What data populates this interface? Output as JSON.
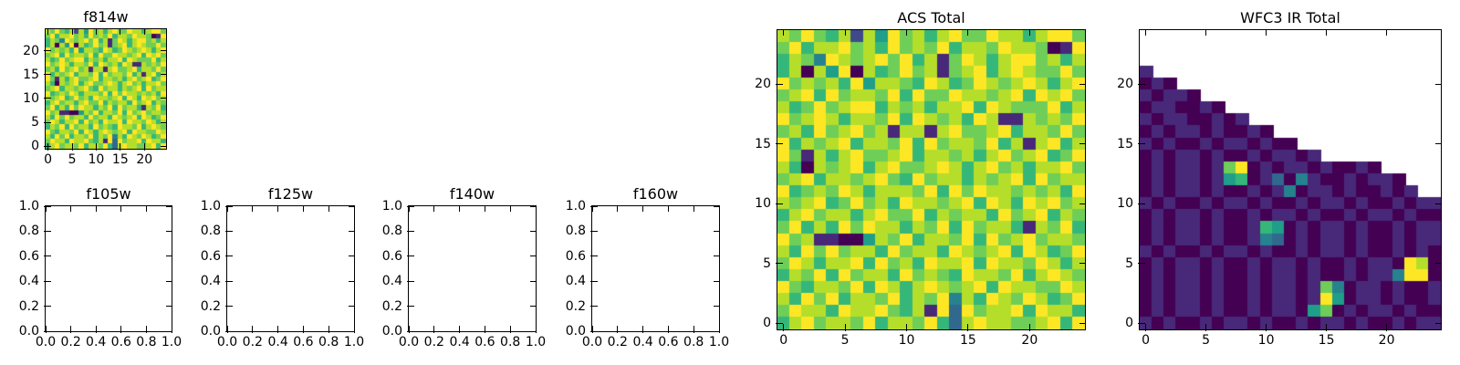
{
  "figure": {
    "background": "#ffffff",
    "text_color": "#000000",
    "axis_line_color": "#000000"
  },
  "colors": {
    "viridis_stops": [
      "#440154",
      "#482878",
      "#3e4a89",
      "#31688e",
      "#26828e",
      "#1f9e89",
      "#35b779",
      "#6ece58",
      "#b5de2b",
      "#fde725"
    ],
    "masked": "#ffffff"
  },
  "grid_encoding": "rows listed top-to-bottom; each char digit d (0-9) = normalized value d/9 mapped onto viridis_stops; '.' = masked cell (white / no data)",
  "grids": {
    "field": [
      "8797682859786897798868997",
      "7968897869787968879887019",
      "6874987897968179868997868",
      "6808590867978178968987797",
      "9787869588769867987898689",
      "7896978879697798878969897",
      "8679789968786889698777968",
      "9789868879698786981187879",
      "7869789781881897789688797",
      "9687896887969788796818968",
      "9718689778968878689789679",
      "8608789689778986897868897",
      "7896887897697886878969788",
      "9678798688879697988787869",
      "8789679786988789698698978",
      "6897886897796878869789687",
      "7968697988687969788618796",
      "9781100587968879697897887",
      "8697978869788698789698679",
      "7986889697869889698879868",
      "6879697886978769887968987",
      "9768879698689878969887798",
      "8697968879687948698798679",
      "7988698897681939788969886",
      "6897887968879638988778969"
    ],
    "wfc3": [
      ".........................",
      ".........................",
      ".........................",
      "1........................",
      "010......................",
      "10110....................",
      "0110010..................",
      "101100101................",
      "01011010010..............",
      "1010010110100............",
      "010110100101101..........",
      "01011017901011010010.....",
      "0101101560130410010110...",
      "01011010010140110100101..",
      "1010010110100101101001011",
      "0101101001011010010110100",
      "0101101001650101101001011",
      "0101101001430101101001011",
      "1010010110100101101001010",
      "0101101001011010010110980",
      "0101101001011010010114990",
      "0101101001011017401101001",
      "0101101001011019501101001",
      "0101101001011057010110100",
      "1010010110100101101001011"
    ]
  },
  "chart_data": [
    {
      "id": "f814w",
      "type": "heatmap",
      "title": "f814w",
      "colormap": "viridis",
      "grid": "field",
      "xlim": [
        -0.5,
        24.5
      ],
      "ylim": [
        -0.5,
        24.5
      ],
      "x_ticks": {
        "values": [
          0,
          5,
          10,
          15,
          20
        ],
        "labels": [
          "0",
          "5",
          "10",
          "15",
          "20"
        ]
      },
      "y_ticks": {
        "values": [
          0,
          5,
          10,
          15,
          20
        ],
        "labels": [
          "0",
          "5",
          "10",
          "15",
          "20"
        ]
      }
    },
    {
      "id": "f105w",
      "type": "empty",
      "title": "f105w",
      "grid": null,
      "xlim": [
        0,
        1
      ],
      "ylim": [
        0,
        1
      ],
      "x_ticks": {
        "values": [
          0,
          0.2,
          0.4,
          0.6,
          0.8,
          1
        ],
        "labels": [
          "0.0",
          "0.2",
          "0.4",
          "0.6",
          "0.8",
          "1.0"
        ]
      },
      "y_ticks": {
        "values": [
          0,
          0.2,
          0.4,
          0.6,
          0.8,
          1
        ],
        "labels": [
          "0.0",
          "0.2",
          "0.4",
          "0.6",
          "0.8",
          "1.0"
        ]
      }
    },
    {
      "id": "f125w",
      "type": "empty",
      "title": "f125w",
      "grid": null,
      "xlim": [
        0,
        1
      ],
      "ylim": [
        0,
        1
      ],
      "x_ticks": {
        "values": [
          0,
          0.2,
          0.4,
          0.6,
          0.8,
          1
        ],
        "labels": [
          "0.0",
          "0.2",
          "0.4",
          "0.6",
          "0.8",
          "1.0"
        ]
      },
      "y_ticks": {
        "values": [
          0,
          0.2,
          0.4,
          0.6,
          0.8,
          1
        ],
        "labels": [
          "0.0",
          "0.2",
          "0.4",
          "0.6",
          "0.8",
          "1.0"
        ]
      }
    },
    {
      "id": "f140w",
      "type": "empty",
      "title": "f140w",
      "grid": null,
      "xlim": [
        0,
        1
      ],
      "ylim": [
        0,
        1
      ],
      "x_ticks": {
        "values": [
          0,
          0.2,
          0.4,
          0.6,
          0.8,
          1
        ],
        "labels": [
          "0.0",
          "0.2",
          "0.4",
          "0.6",
          "0.8",
          "1.0"
        ]
      },
      "y_ticks": {
        "values": [
          0,
          0.2,
          0.4,
          0.6,
          0.8,
          1
        ],
        "labels": [
          "0.0",
          "0.2",
          "0.4",
          "0.6",
          "0.8",
          "1.0"
        ]
      }
    },
    {
      "id": "f160w",
      "type": "empty",
      "title": "f160w",
      "grid": null,
      "xlim": [
        0,
        1
      ],
      "ylim": [
        0,
        1
      ],
      "x_ticks": {
        "values": [
          0,
          0.2,
          0.4,
          0.6,
          0.8,
          1
        ],
        "labels": [
          "0.0",
          "0.2",
          "0.4",
          "0.6",
          "0.8",
          "1.0"
        ]
      },
      "y_ticks": {
        "values": [
          0,
          0.2,
          0.4,
          0.6,
          0.8,
          1
        ],
        "labels": [
          "0.0",
          "0.2",
          "0.4",
          "0.6",
          "0.8",
          "1.0"
        ]
      }
    },
    {
      "id": "acs_total",
      "type": "heatmap",
      "title": "ACS Total",
      "colormap": "viridis",
      "grid": "field",
      "xlim": [
        -0.5,
        24.5
      ],
      "ylim": [
        -0.5,
        24.5
      ],
      "x_ticks": {
        "values": [
          0,
          5,
          10,
          15,
          20
        ],
        "labels": [
          "0",
          "5",
          "10",
          "15",
          "20"
        ]
      },
      "y_ticks": {
        "values": [
          0,
          5,
          10,
          15,
          20
        ],
        "labels": [
          "0",
          "5",
          "10",
          "15",
          "20"
        ]
      }
    },
    {
      "id": "wfc3_ir_total",
      "type": "heatmap",
      "title": "WFC3 IR Total",
      "colormap": "viridis",
      "grid": "wfc3",
      "xlim": [
        -0.5,
        24.5
      ],
      "ylim": [
        -0.5,
        24.5
      ],
      "x_ticks": {
        "values": [
          0,
          5,
          10,
          15,
          20
        ],
        "labels": [
          "0",
          "5",
          "10",
          "15",
          "20"
        ]
      },
      "y_ticks": {
        "values": [
          0,
          5,
          10,
          15,
          20
        ],
        "labels": [
          "0",
          "5",
          "10",
          "15",
          "20"
        ]
      }
    }
  ]
}
